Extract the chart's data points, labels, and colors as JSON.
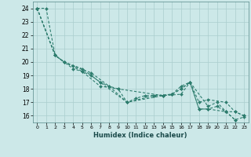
{
  "title": "",
  "xlabel": "Humidex (Indice chaleur)",
  "bg_color": "#cce8e8",
  "grid_color": "#aacece",
  "line_color": "#2e7d6e",
  "xlim": [
    -0.5,
    23.5
  ],
  "ylim": [
    15.5,
    24.5
  ],
  "yticks": [
    16,
    17,
    18,
    19,
    20,
    21,
    22,
    23,
    24
  ],
  "xticks": [
    0,
    1,
    2,
    3,
    4,
    5,
    6,
    7,
    8,
    9,
    10,
    11,
    12,
    13,
    14,
    15,
    16,
    17,
    18,
    19,
    20,
    21,
    22,
    23
  ],
  "series1": [
    [
      0,
      24.0
    ],
    [
      1,
      24.0
    ],
    [
      2,
      20.5
    ],
    [
      3,
      20.0
    ],
    [
      4,
      19.5
    ],
    [
      5,
      19.3
    ],
    [
      6,
      19.0
    ],
    [
      7,
      18.5
    ],
    [
      8,
      18.2
    ],
    [
      9,
      18.0
    ],
    [
      10,
      17.0
    ],
    [
      11,
      17.3
    ],
    [
      12,
      17.5
    ],
    [
      13,
      17.5
    ],
    [
      14,
      17.5
    ],
    [
      15,
      17.6
    ],
    [
      16,
      18.0
    ],
    [
      17,
      18.5
    ],
    [
      18,
      16.5
    ],
    [
      19,
      16.5
    ],
    [
      20,
      16.7
    ],
    [
      21,
      16.3
    ],
    [
      22,
      15.7
    ],
    [
      23,
      15.9
    ]
  ],
  "series2": [
    [
      0,
      24.0
    ],
    [
      2,
      20.5
    ],
    [
      3,
      20.0
    ],
    [
      5,
      19.5
    ],
    [
      7,
      18.5
    ],
    [
      10,
      17.0
    ],
    [
      14,
      17.5
    ],
    [
      15,
      17.6
    ],
    [
      16,
      18.0
    ],
    [
      17,
      18.5
    ],
    [
      18,
      17.0
    ],
    [
      19,
      17.2
    ],
    [
      21,
      17.0
    ],
    [
      22,
      16.3
    ],
    [
      23,
      16.0
    ]
  ],
  "series3": [
    [
      0,
      24.0
    ],
    [
      2,
      20.5
    ],
    [
      3,
      20.0
    ],
    [
      5,
      19.3
    ],
    [
      7,
      18.2
    ],
    [
      9,
      18.0
    ],
    [
      14,
      17.5
    ],
    [
      16,
      17.6
    ],
    [
      17,
      18.5
    ],
    [
      18,
      16.5
    ],
    [
      19,
      16.5
    ],
    [
      21,
      16.3
    ],
    [
      22,
      15.7
    ]
  ],
  "series4": [
    [
      0,
      24.0
    ],
    [
      2,
      20.5
    ],
    [
      3,
      20.0
    ],
    [
      4,
      19.7
    ],
    [
      6,
      19.2
    ],
    [
      8,
      18.2
    ],
    [
      10,
      17.0
    ],
    [
      13,
      17.5
    ],
    [
      15,
      17.6
    ],
    [
      16,
      18.2
    ],
    [
      17,
      18.5
    ],
    [
      19,
      16.7
    ],
    [
      20,
      17.0
    ],
    [
      21,
      16.3
    ],
    [
      22,
      16.3
    ],
    [
      23,
      16.0
    ]
  ]
}
